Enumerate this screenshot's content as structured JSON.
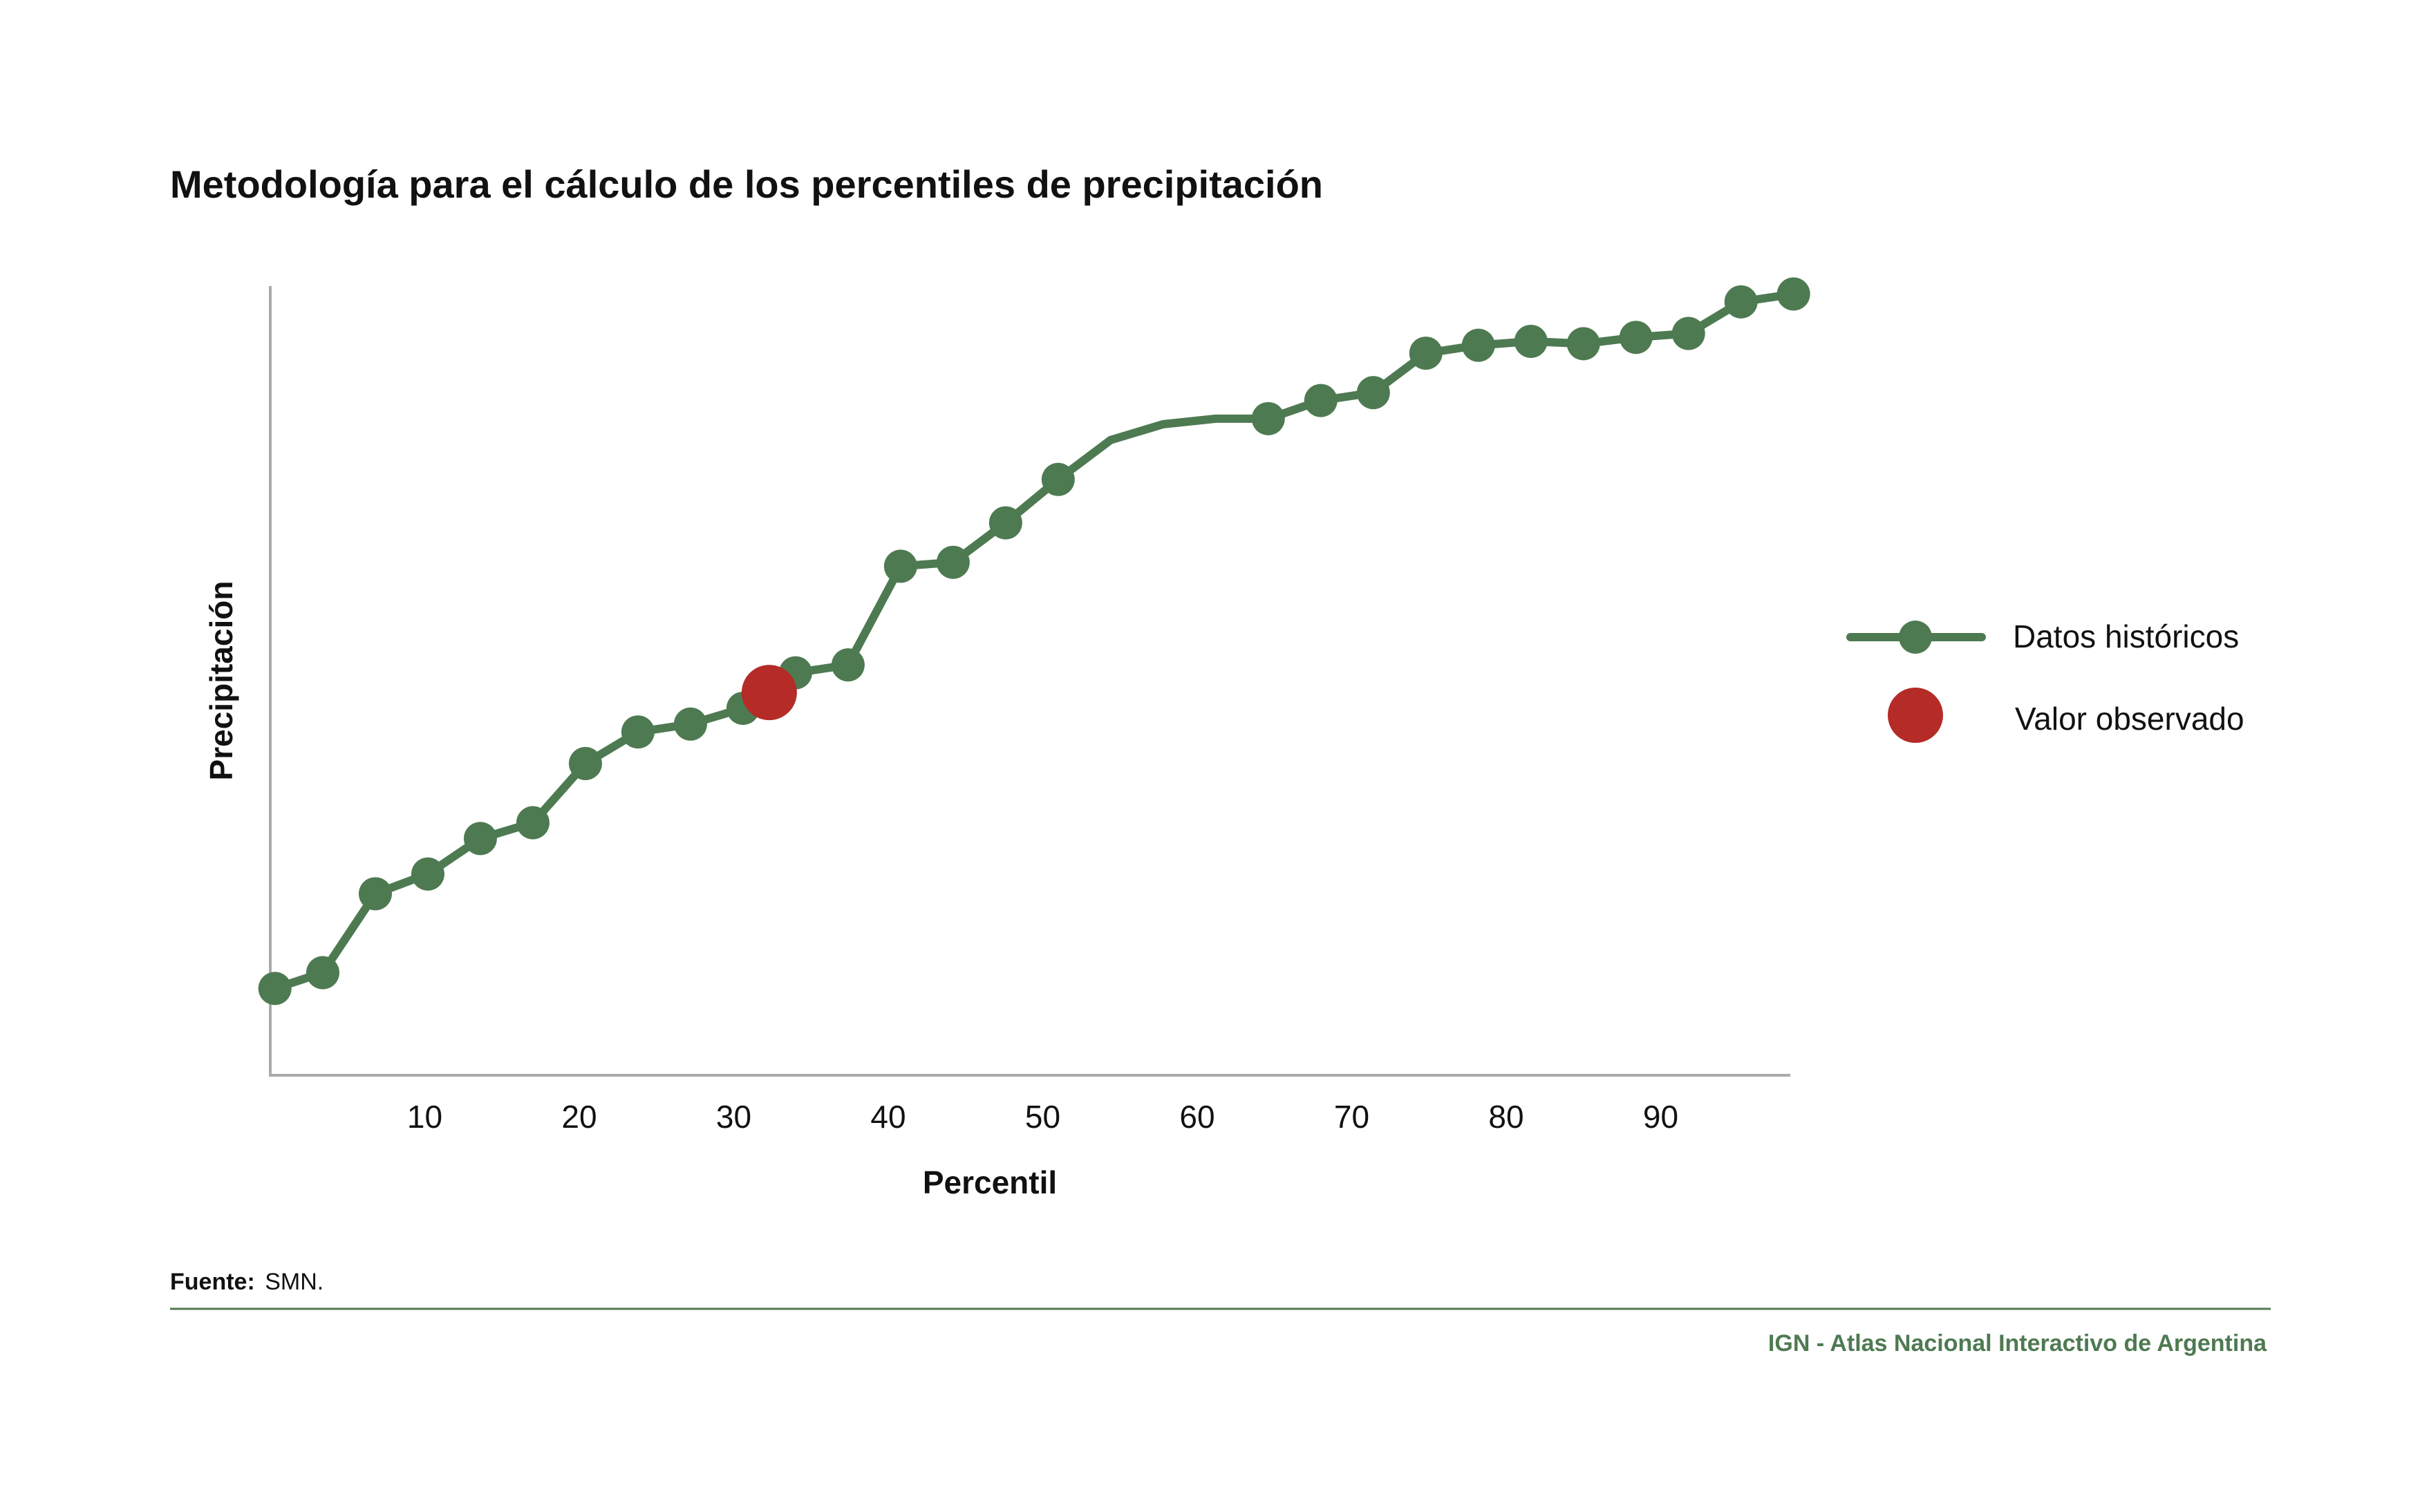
{
  "colors": {
    "series": "#4e7a52",
    "observed": "#b52b27",
    "axis": "#aaaaaa",
    "text": "#111111",
    "credit": "#4e7a52"
  },
  "chart_data": {
    "type": "line",
    "title": "Metodología para el cálculo de los percentiles de precipitación",
    "xlabel": "Percentil",
    "ylabel": "Precipitación",
    "xlim": [
      0,
      100
    ],
    "ylim": [
      0,
      100
    ],
    "x_ticks": [
      10,
      20,
      30,
      40,
      50,
      60,
      70,
      80,
      90
    ],
    "y_ticks": [],
    "grid": false,
    "legend_position": "right",
    "series": [
      {
        "name": "Datos históricos",
        "marker": "circle",
        "points": [
          {
            "x": 0.3,
            "y": 11
          },
          {
            "x": 3.4,
            "y": 13
          },
          {
            "x": 6.8,
            "y": 23
          },
          {
            "x": 10.2,
            "y": 25.5
          },
          {
            "x": 13.6,
            "y": 30
          },
          {
            "x": 17,
            "y": 32
          },
          {
            "x": 20.4,
            "y": 39.5
          },
          {
            "x": 23.8,
            "y": 43.5
          },
          {
            "x": 27.2,
            "y": 44.5
          },
          {
            "x": 30.6,
            "y": 46.5
          },
          {
            "x": 34,
            "y": 51
          },
          {
            "x": 37.4,
            "y": 52
          },
          {
            "x": 40.8,
            "y": 64.5
          },
          {
            "x": 44.2,
            "y": 65
          },
          {
            "x": 47.6,
            "y": 70
          },
          {
            "x": 51,
            "y": 75.5
          },
          {
            "x": 54.4,
            "y": 80.5,
            "marker": false
          },
          {
            "x": 57.8,
            "y": 82.5,
            "marker": false
          },
          {
            "x": 61.2,
            "y": 83.2,
            "marker": false
          },
          {
            "x": 64.6,
            "y": 83.2
          },
          {
            "x": 68,
            "y": 85.5
          },
          {
            "x": 71.4,
            "y": 86.5
          },
          {
            "x": 74.8,
            "y": 91.5
          },
          {
            "x": 78.2,
            "y": 92.5
          },
          {
            "x": 81.6,
            "y": 93
          },
          {
            "x": 85,
            "y": 92.7
          },
          {
            "x": 88.4,
            "y": 93.5
          },
          {
            "x": 91.8,
            "y": 94
          },
          {
            "x": 95.2,
            "y": 98
          },
          {
            "x": 98.6,
            "y": 99
          }
        ]
      },
      {
        "name": "Valor observado",
        "marker": "circle",
        "points": [
          {
            "x": 32.3,
            "y": 48.5
          }
        ]
      }
    ]
  },
  "source": {
    "label": "Fuente:",
    "value": "SMN."
  },
  "credit": "IGN - Atlas Nacional Interactivo de Argentina"
}
